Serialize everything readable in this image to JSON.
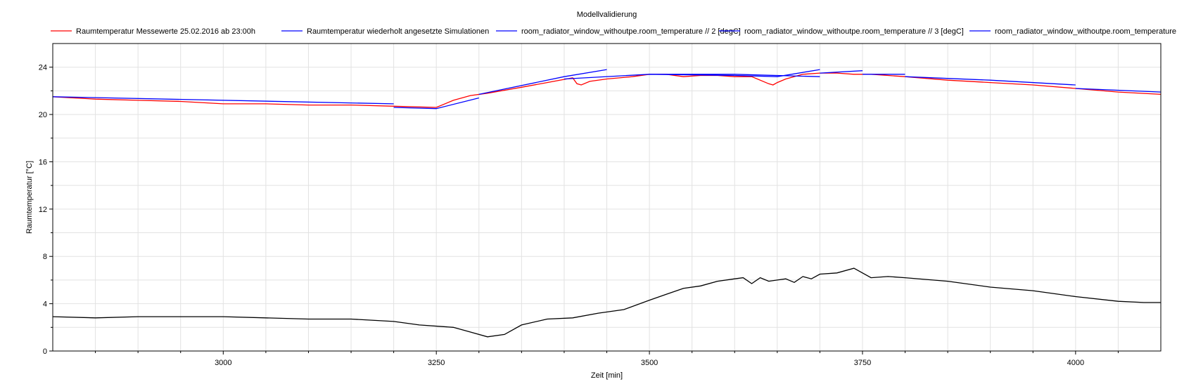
{
  "chart_data": {
    "type": "line",
    "title": "Modellvalidierung",
    "xlabel": "Zeit [min]",
    "ylabel": "Raumtemperatur [°C]",
    "xlim": [
      2800,
      4100
    ],
    "ylim": [
      0,
      26
    ],
    "x_ticks": [
      3000,
      3250,
      3500,
      3750,
      4000
    ],
    "y_ticks": [
      0,
      4,
      8,
      12,
      16,
      20,
      24
    ],
    "grid": true,
    "legend_position": "top",
    "series": [
      {
        "name": "Raumtemperatur Messewerte 25.02.2016 ab 23:00h",
        "color": "#ff0000",
        "x": [
          2800,
          2850,
          2900,
          2950,
          3000,
          3050,
          3100,
          3150,
          3200,
          3250,
          3270,
          3290,
          3310,
          3350,
          3380,
          3410,
          3415,
          3420,
          3430,
          3450,
          3480,
          3500,
          3520,
          3540,
          3560,
          3580,
          3600,
          3620,
          3640,
          3645,
          3650,
          3660,
          3680,
          3700,
          3720,
          3740,
          3760,
          3780,
          3800,
          3850,
          3900,
          3950,
          4000,
          4050,
          4100
        ],
        "y": [
          21.5,
          21.3,
          21.2,
          21.1,
          20.9,
          20.9,
          20.8,
          20.8,
          20.7,
          20.6,
          21.2,
          21.6,
          21.8,
          22.3,
          22.7,
          23.1,
          22.6,
          22.5,
          22.8,
          23.0,
          23.2,
          23.4,
          23.4,
          23.2,
          23.3,
          23.3,
          23.2,
          23.2,
          22.6,
          22.5,
          22.7,
          23.0,
          23.4,
          23.5,
          23.5,
          23.4,
          23.4,
          23.3,
          23.2,
          22.9,
          22.7,
          22.5,
          22.2,
          21.9,
          21.7
        ]
      },
      {
        "name": "Raumtemperatur wiederholt angesetzte Simulationen",
        "color": "#0000ff",
        "segments": [
          {
            "x": [
              2800,
              3200
            ],
            "y": [
              21.5,
              20.9
            ]
          },
          {
            "x": [
              3200,
              3250,
              3300
            ],
            "y": [
              20.6,
              20.5,
              21.4
            ]
          },
          {
            "x": [
              3300,
              3400,
              3450
            ],
            "y": [
              21.7,
              23.2,
              23.8
            ]
          },
          {
            "x": [
              3400,
              3500,
              3600
            ],
            "y": [
              23.0,
              23.4,
              23.3
            ]
          },
          {
            "x": [
              3500,
              3600,
              3700
            ],
            "y": [
              23.4,
              23.4,
              23.2
            ]
          },
          {
            "x": [
              3600,
              3650,
              3700
            ],
            "y": [
              23.3,
              23.2,
              23.8
            ]
          },
          {
            "x": [
              3700,
              3750
            ],
            "y": [
              23.5,
              23.7
            ]
          },
          {
            "x": [
              3750,
              3800
            ],
            "y": [
              23.4,
              23.4
            ]
          },
          {
            "x": [
              3800,
              3900,
              4000
            ],
            "y": [
              23.2,
              22.9,
              22.5
            ]
          },
          {
            "x": [
              4000,
              4100
            ],
            "y": [
              22.2,
              21.9
            ]
          }
        ]
      },
      {
        "name": "room_radiator_window_withoutpe.room_temperature // 2 [degC]",
        "color": "#0000ff",
        "legend_only": true
      },
      {
        "name": "room_radiator_window_withoutpe.room_temperature // 3 [degC]",
        "color": "#0000ff",
        "legend_only": true
      },
      {
        "name": "room_radiator_window_withoutpe.room_temperature",
        "color": "#0000ff",
        "legend_only": true
      },
      {
        "name": "",
        "color": "#000000",
        "x": [
          2800,
          2850,
          2900,
          2950,
          3000,
          3050,
          3100,
          3150,
          3200,
          3230,
          3270,
          3290,
          3310,
          3330,
          3350,
          3380,
          3410,
          3440,
          3470,
          3500,
          3520,
          3540,
          3560,
          3580,
          3600,
          3610,
          3620,
          3630,
          3640,
          3650,
          3660,
          3670,
          3680,
          3690,
          3700,
          3720,
          3740,
          3760,
          3780,
          3800,
          3850,
          3900,
          3950,
          4000,
          4050,
          4080,
          4100
        ],
        "y": [
          2.9,
          2.8,
          2.9,
          2.9,
          2.9,
          2.8,
          2.7,
          2.7,
          2.5,
          2.2,
          2.0,
          1.6,
          1.2,
          1.4,
          2.2,
          2.7,
          2.8,
          3.2,
          3.5,
          4.3,
          4.8,
          5.3,
          5.5,
          5.9,
          6.1,
          6.2,
          5.7,
          6.2,
          5.9,
          6.0,
          6.1,
          5.8,
          6.3,
          6.1,
          6.5,
          6.6,
          7.0,
          6.2,
          6.3,
          6.2,
          5.9,
          5.4,
          5.1,
          4.6,
          4.2,
          4.1,
          4.1
        ]
      }
    ]
  }
}
